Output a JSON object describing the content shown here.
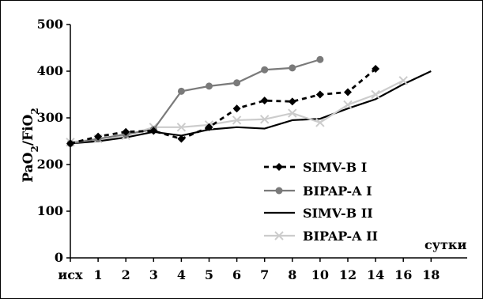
{
  "chart_data": {
    "type": "line",
    "ylabel_parts": [
      "PaO",
      "2",
      "/FiO",
      "2"
    ],
    "xunit_label": "сутки",
    "categories": [
      "исх",
      "1",
      "2",
      "3",
      "4",
      "5",
      "6",
      "7",
      "8",
      "10",
      "12",
      "14",
      "16",
      "18"
    ],
    "ylim": [
      0,
      500
    ],
    "yticks": [
      0,
      100,
      200,
      300,
      400,
      500
    ],
    "grid": false,
    "legend_position": "right-center",
    "series": [
      {
        "name": "SIMV-B I",
        "color": "#000000",
        "line": "dashed",
        "marker": "diamond",
        "values": [
          245,
          260,
          270,
          272,
          255,
          280,
          320,
          337,
          335,
          350,
          355,
          405,
          null,
          null
        ]
      },
      {
        "name": "BIPAP-A I",
        "color": "#7a7a7a",
        "line": "solid",
        "marker": "circle",
        "values": [
          245,
          255,
          265,
          275,
          357,
          368,
          375,
          403,
          407,
          425,
          null,
          null,
          null,
          null
        ]
      },
      {
        "name": "SIMV-B II",
        "color": "#000000",
        "line": "solid",
        "marker": "none",
        "values": [
          245,
          250,
          258,
          270,
          262,
          275,
          280,
          277,
          295,
          298,
          320,
          340,
          372,
          400
        ]
      },
      {
        "name": "BIPAP-A II",
        "color": "#cccccc",
        "line": "solid",
        "marker": "x",
        "values": [
          248,
          255,
          262,
          280,
          280,
          285,
          295,
          297,
          310,
          290,
          328,
          350,
          380,
          null
        ]
      }
    ]
  }
}
